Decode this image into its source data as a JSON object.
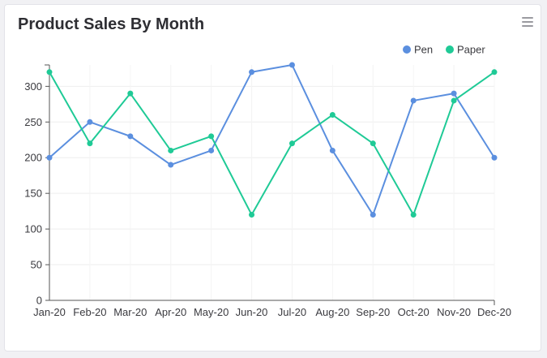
{
  "card": {
    "title": "Product Sales By Month",
    "menu_icon": "hamburger-menu-icon"
  },
  "chart_data": {
    "type": "line",
    "title": "Product Sales By Month",
    "xlabel": "",
    "ylabel": "",
    "categories": [
      "Jan-20",
      "Feb-20",
      "Mar-20",
      "Apr-20",
      "May-20",
      "Jun-20",
      "Jul-20",
      "Aug-20",
      "Sep-20",
      "Oct-20",
      "Nov-20",
      "Dec-20"
    ],
    "ylim": [
      0,
      330
    ],
    "yticks": [
      0,
      50,
      100,
      150,
      200,
      250,
      300
    ],
    "grid": true,
    "legend_position": "top-right",
    "series": [
      {
        "name": "Pen",
        "color": "#5b8fdf",
        "values": [
          200,
          250,
          230,
          190,
          210,
          320,
          330,
          210,
          120,
          280,
          290,
          200
        ]
      },
      {
        "name": "Paper",
        "color": "#1fca96",
        "values": [
          320,
          220,
          290,
          210,
          230,
          120,
          220,
          260,
          220,
          120,
          280,
          320
        ]
      }
    ]
  }
}
